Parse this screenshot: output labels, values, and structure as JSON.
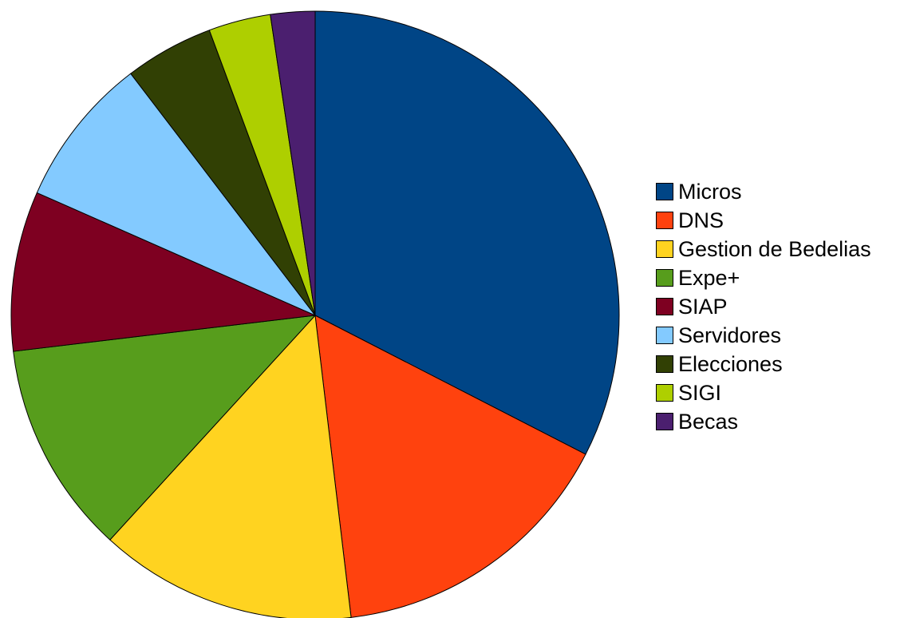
{
  "chart_data": {
    "type": "pie",
    "title": "",
    "legend_position": "right",
    "direction": "clockwise from top",
    "series": [
      {
        "name": "Micros",
        "value": 34.5,
        "color": "#004586"
      },
      {
        "name": "DNS",
        "value": 16.5,
        "color": "#ff420e"
      },
      {
        "name": "Gestion de Bedelias",
        "value": 14.5,
        "color": "#ffd320"
      },
      {
        "name": "Expe+",
        "value": 12.0,
        "color": "#579d1c"
      },
      {
        "name": "SIAP",
        "value": 9.0,
        "color": "#7e0021"
      },
      {
        "name": "Servidores",
        "value": 8.5,
        "color": "#83caff"
      },
      {
        "name": "Elecciones",
        "value": 5.0,
        "color": "#314004"
      },
      {
        "name": "SIGI",
        "value": 3.5,
        "color": "#aecf00"
      },
      {
        "name": "Becas",
        "value": 2.5,
        "color": "#4b1f6f"
      }
    ]
  }
}
